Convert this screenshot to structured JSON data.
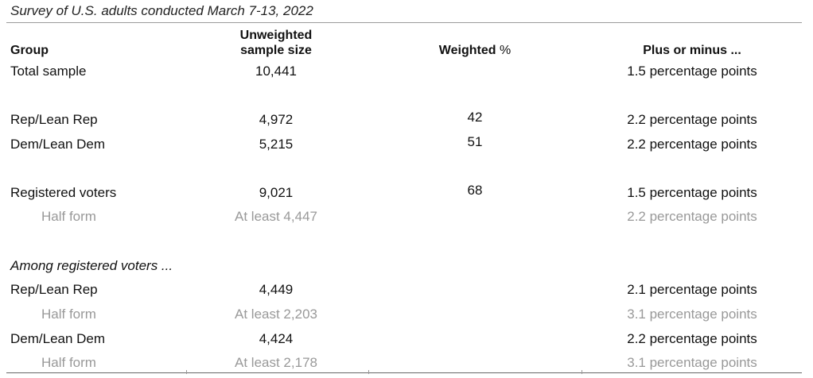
{
  "survey_note": "Survey of U.S. adults conducted March 7-13, 2022",
  "headers": {
    "group": "Group",
    "sample_line1": "Unweighted",
    "sample_line2": "sample size",
    "weighted": "Weighted",
    "weighted_pct": "%",
    "moe": "Plus or minus ..."
  },
  "rows": [
    {
      "label": "Total sample",
      "sample": "10,441",
      "weighted": "",
      "moe": "1.5 percentage points"
    },
    {
      "label": "Rep/Lean Rep",
      "sample": "4,972",
      "weighted": "42",
      "moe": "2.2 percentage points"
    },
    {
      "label": "Dem/Lean Dem",
      "sample": "5,215",
      "weighted": "51",
      "moe": "2.2 percentage points"
    },
    {
      "label": "Registered voters",
      "sample": "9,021",
      "weighted": "68",
      "moe": "1.5 percentage points"
    },
    {
      "label": "Half form",
      "sample": "At least 4,447",
      "weighted": "",
      "moe": "2.2 percentage points"
    },
    {
      "label": "Among registered voters ...",
      "sample": "",
      "weighted": "",
      "moe": ""
    },
    {
      "label": "Rep/Lean Rep",
      "sample": "4,449",
      "weighted": "",
      "moe": "2.1 percentage points"
    },
    {
      "label": "Half form",
      "sample": "At least 2,203",
      "weighted": "",
      "moe": "3.1 percentage points"
    },
    {
      "label": "Dem/Lean Dem",
      "sample": "4,424",
      "weighted": "",
      "moe": "2.2 percentage points"
    },
    {
      "label": "Half form",
      "sample": "At least 2,178",
      "weighted": "",
      "moe": "3.1 percentage points"
    }
  ]
}
